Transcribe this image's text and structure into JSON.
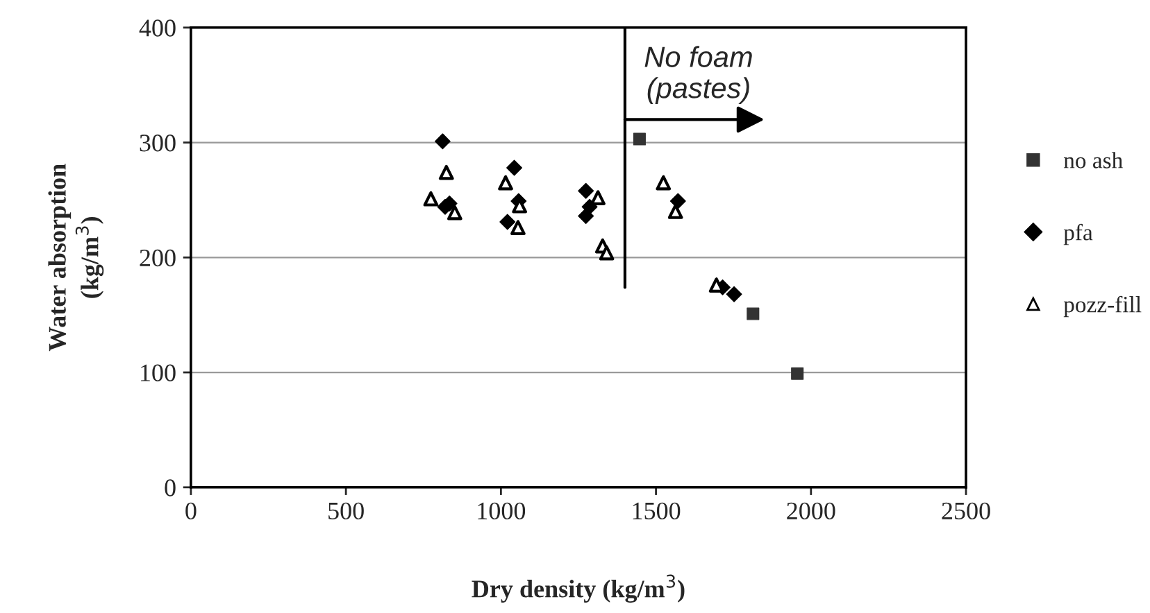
{
  "chart_data": {
    "type": "scatter",
    "xlabel": "Dry density (kg/m$^{3}$)",
    "ylabel": "Water absorption\n(kg/m$^{3}$)",
    "xlim": [
      0,
      2500
    ],
    "xticks": [
      0,
      500,
      1000,
      1500,
      2000,
      2500
    ],
    "ylim": [
      0,
      400
    ],
    "yticks": [
      0,
      100,
      200,
      300,
      400
    ],
    "grid": "y",
    "legend": "right",
    "ref_lines": [
      {
        "axis": "x",
        "value": 1400,
        "color": "#000000"
      }
    ],
    "annotations": [
      {
        "text": "No foam\n(pastes)",
        "x": 1400,
        "y": 320
      }
    ],
    "series": [
      {
        "name": "no ash",
        "color": "#333333",
        "marker": "square",
        "x": [
          1447,
          1813,
          1956
        ],
        "values": [
          303,
          151,
          99
        ]
      },
      {
        "name": "pfa",
        "color": "#000000",
        "marker": "diamond",
        "x": [
          812,
          834,
          820,
          1043,
          1021,
          1057,
          1274,
          1286,
          1274,
          1571,
          1715,
          1752
        ],
        "values": [
          301,
          247,
          244,
          278,
          231,
          249,
          258,
          244,
          236,
          249,
          174,
          168
        ]
      },
      {
        "name": "pozz-fill",
        "color": "#000000",
        "marker": "triangle",
        "x": [
          774,
          824,
          851,
          1015,
          1060,
          1055,
          1313,
          1328,
          1341,
          1524,
          1563,
          1695
        ],
        "values": [
          251,
          274,
          239,
          265,
          245,
          226,
          252,
          210,
          204,
          265,
          240,
          176
        ]
      }
    ]
  }
}
